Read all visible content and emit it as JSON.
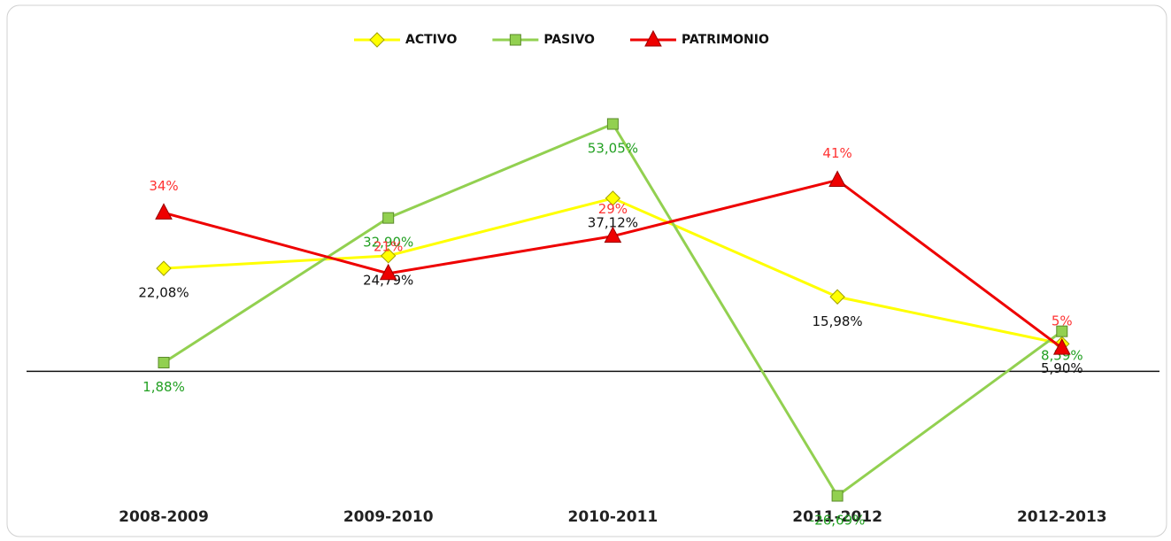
{
  "chart_data": {
    "type": "line",
    "categories": [
      "2008-2009",
      "2009-2010",
      "2010-2011",
      "2011-2012",
      "2012-2013"
    ],
    "series": [
      {
        "name": "ACTIVO",
        "color": "#ffff00",
        "label_color": "#111111",
        "marker": "diamond",
        "values": [
          22.08,
          24.79,
          37.12,
          15.98,
          5.9
        ],
        "value_labels": [
          "22,08%",
          "24,79%",
          "37,12%",
          "15,98%",
          "5,90%"
        ]
      },
      {
        "name": "PASIVO",
        "color": "#92d050",
        "label_color": "#22a022",
        "marker": "square",
        "values": [
          1.88,
          32.9,
          53.05,
          -26.69,
          8.59
        ],
        "value_labels": [
          "1,88%",
          "32,90%",
          "53,05%",
          "-26,69%",
          "8,59%"
        ]
      },
      {
        "name": "PATRIMONIO",
        "color": "#ee0000",
        "label_color": "#ff3333",
        "marker": "triangle",
        "values": [
          34,
          21,
          29,
          41,
          5
        ],
        "value_labels": [
          "34%",
          "21%",
          "29%",
          "41%",
          "5%"
        ]
      }
    ],
    "legend": "top"
  }
}
